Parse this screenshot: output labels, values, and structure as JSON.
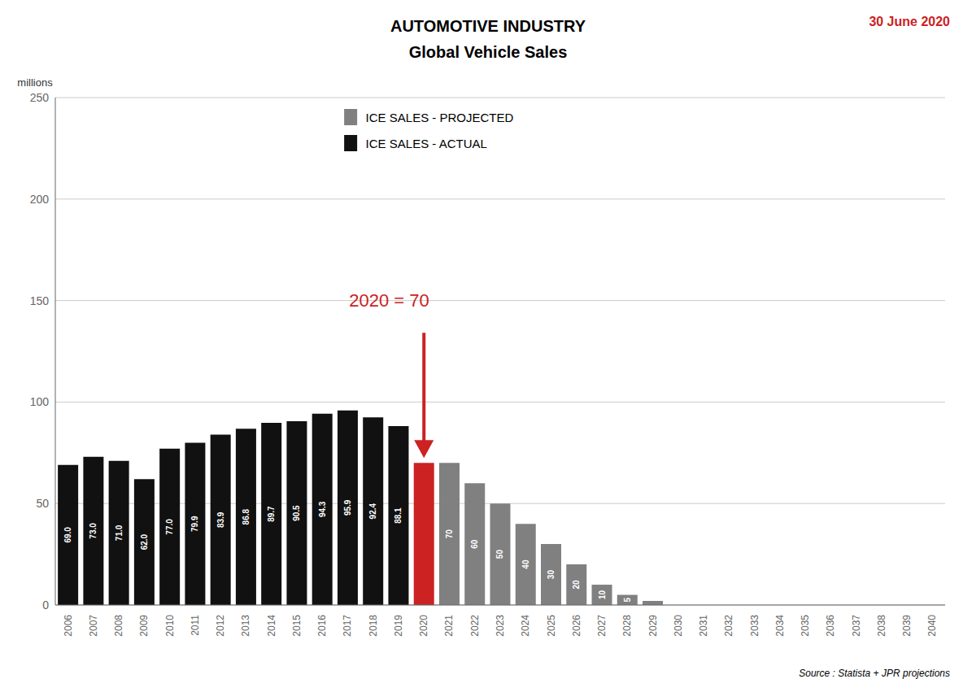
{
  "chart_data": {
    "type": "bar",
    "title": "AUTOMOTIVE INDUSTRY",
    "subtitle": "Global Vehicle Sales",
    "ylabel": "millions",
    "source": "Source : Statista + JPR projections",
    "categories": [
      "2006",
      "2007",
      "2008",
      "2009",
      "2010",
      "2011",
      "2012",
      "2013",
      "2014",
      "2015",
      "2016",
      "2017",
      "2018",
      "2019",
      "2020",
      "2021",
      "2022",
      "2023",
      "2024",
      "2025",
      "2026",
      "2027",
      "2028",
      "2029",
      "2030",
      "2031",
      "2032",
      "2033",
      "2034",
      "2035",
      "2036",
      "2037",
      "2038",
      "2039",
      "2040"
    ],
    "values": [
      69.0,
      73.0,
      71.0,
      62.0,
      77.0,
      79.9,
      83.9,
      86.8,
      89.7,
      90.5,
      94.3,
      95.9,
      92.4,
      88.1,
      70,
      70,
      60,
      50,
      40,
      30,
      20,
      10,
      5,
      2,
      0,
      0,
      0,
      0,
      0,
      0,
      0,
      0,
      0,
      0,
      0
    ],
    "value_labels": [
      "69.0",
      "73.0",
      "71.0",
      "62.0",
      "77.0",
      "79.9",
      "83.9",
      "86.8",
      "89.7",
      "90.5",
      "94.3",
      "95.9",
      "92.4",
      "88.1",
      null,
      "70",
      "60",
      "50",
      "40",
      "30",
      "20",
      "10",
      "5",
      null,
      null,
      null,
      null,
      null,
      null,
      null,
      null,
      null,
      null,
      null,
      null
    ],
    "data_labels": true,
    "colors": [
      "#111111",
      "#111111",
      "#111111",
      "#111111",
      "#111111",
      "#111111",
      "#111111",
      "#111111",
      "#111111",
      "#111111",
      "#111111",
      "#111111",
      "#111111",
      "#111111",
      "#cc2222",
      "#808080",
      "#808080",
      "#808080",
      "#808080",
      "#808080",
      "#808080",
      "#808080",
      "#808080",
      "#808080",
      "#808080",
      "#808080",
      "#808080",
      "#808080",
      "#808080",
      "#808080",
      "#808080",
      "#808080",
      "#808080",
      "#808080",
      "#808080"
    ],
    "legend": "upper center",
    "legend_items": [
      {
        "label": "ICE SALES - PROJECTED",
        "color": "#808080"
      },
      {
        "label": "ICE SALES - ACTUAL",
        "color": "#111111"
      }
    ],
    "annotations": [
      {
        "text": "30 June 2020",
        "color": "#cc2222"
      },
      {
        "text": "2020 = 70",
        "x": "2020",
        "color": "#cc2222"
      }
    ],
    "ylim": [
      0,
      250
    ],
    "yticks": [
      0,
      50,
      100,
      150,
      200,
      250
    ],
    "grid": true
  }
}
